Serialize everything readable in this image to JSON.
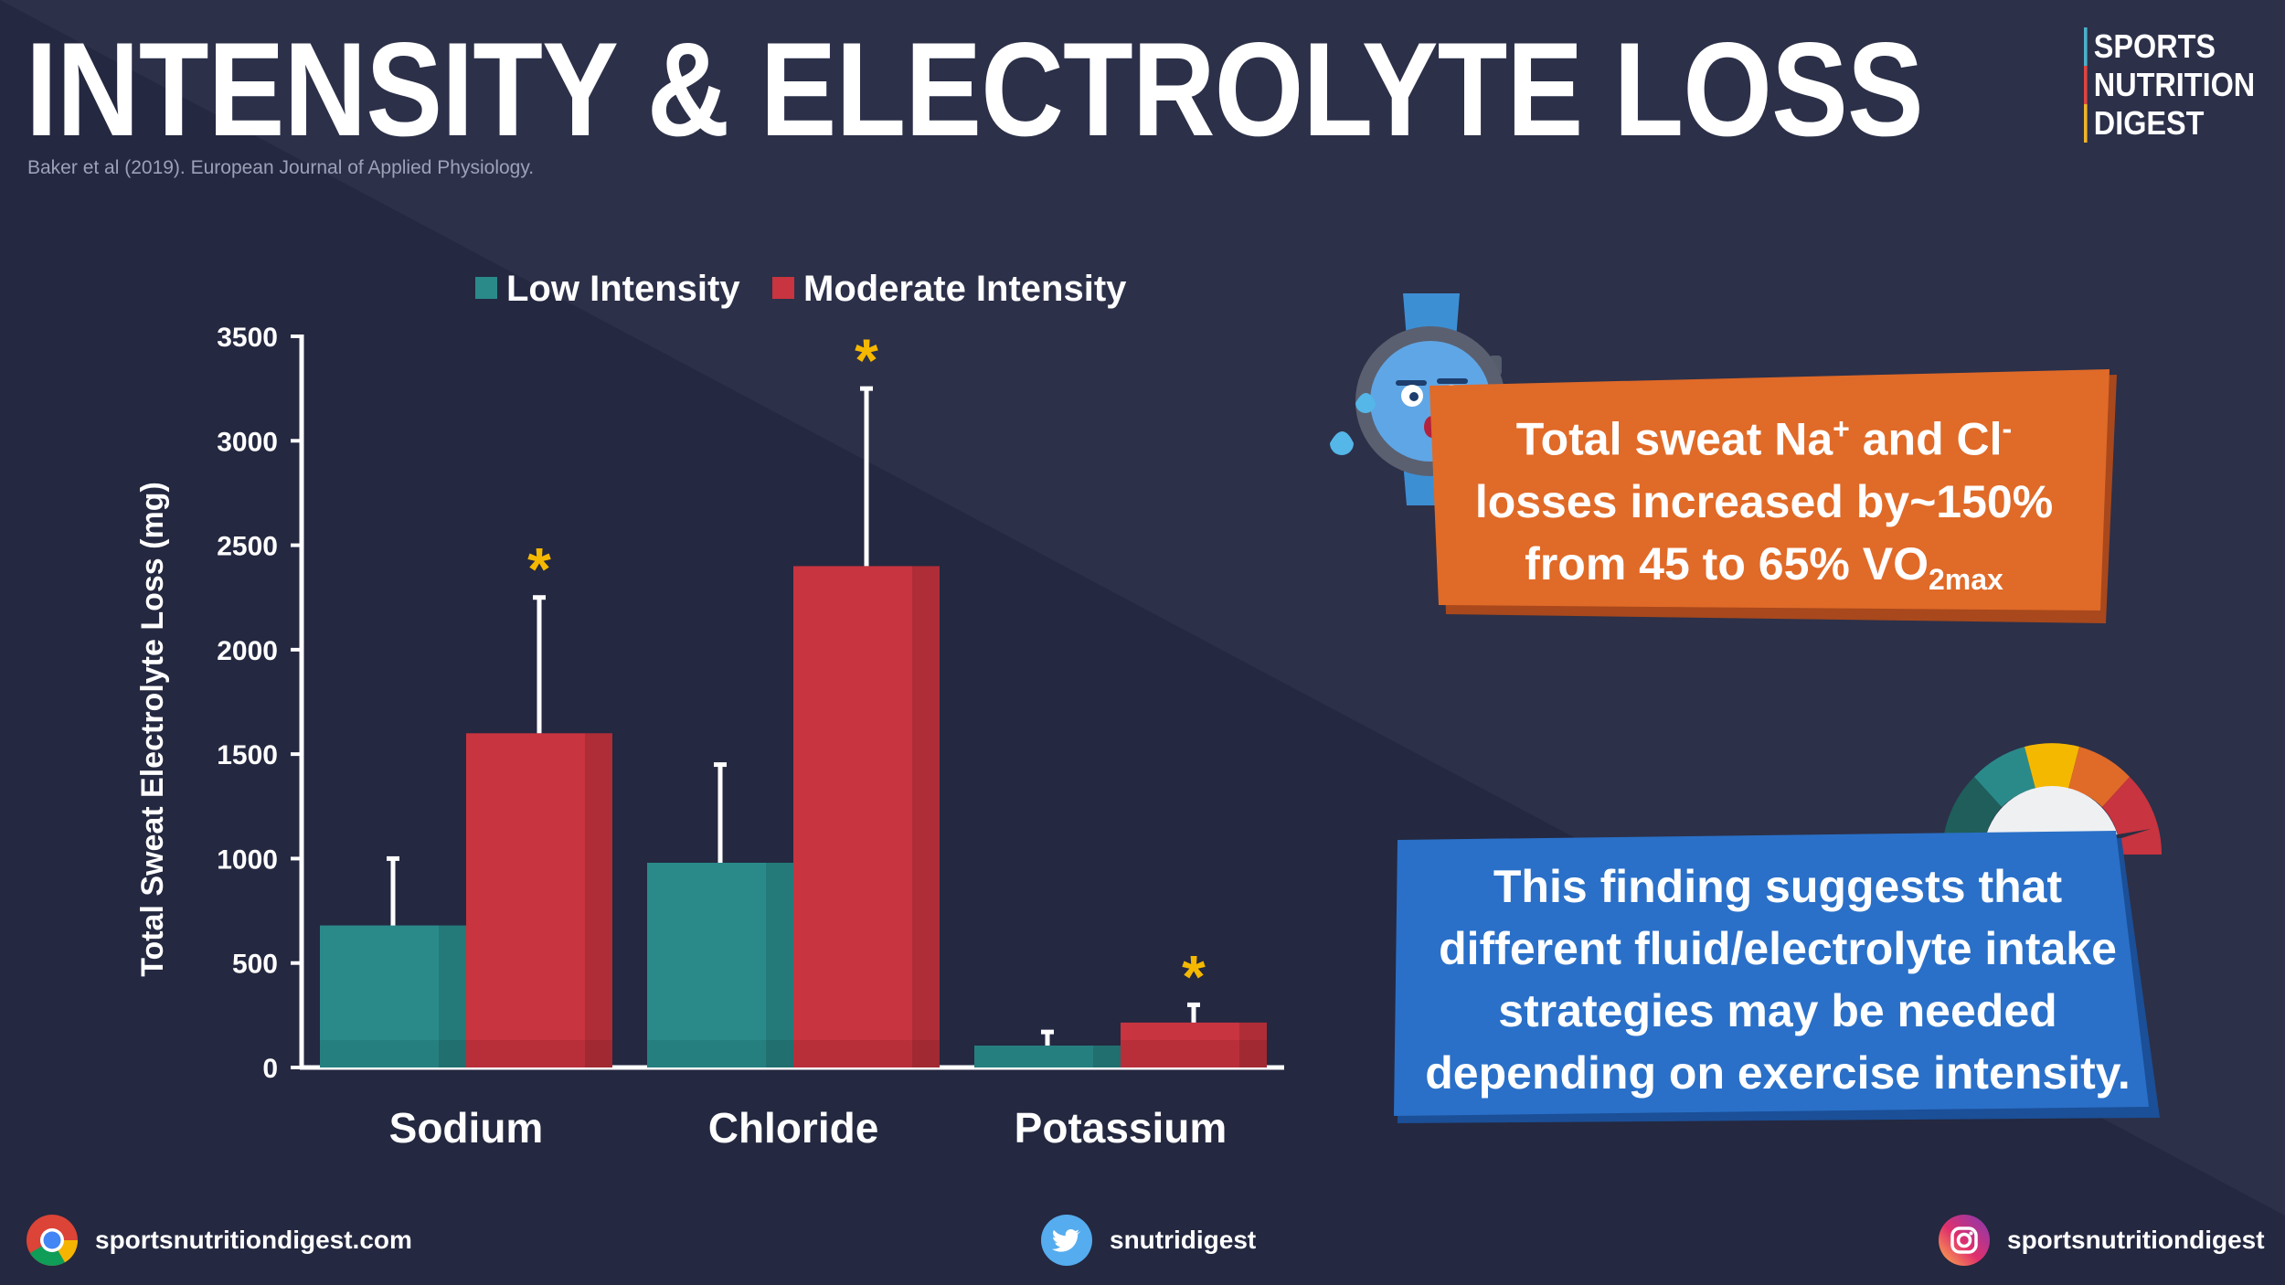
{
  "header": {
    "title": "INTENSITY & ELECTROLYTE LOSS",
    "citation": "Baker et al (2019). European Journal of Applied Physiology."
  },
  "brand": {
    "line1": "SPORTS",
    "line2": "NUTRITION",
    "line3": "DIGEST"
  },
  "colors": {
    "low": "#2a8a8a",
    "moderate": "#c8343f",
    "orange_box": "#e06a28",
    "blue_box": "#2a70c8",
    "star": "#f5b800",
    "background": "#242840"
  },
  "chart_data": {
    "type": "bar",
    "categories": [
      "Sodium",
      "Chloride",
      "Potassium"
    ],
    "series": [
      {
        "name": "Low Intensity",
        "values": [
          680,
          980,
          105
        ],
        "error_top": [
          1000,
          1450,
          170
        ],
        "significant": [
          false,
          false,
          false
        ]
      },
      {
        "name": "Moderate Intensity",
        "values": [
          1600,
          2400,
          215
        ],
        "error_top": [
          2250,
          3250,
          300
        ],
        "significant": [
          true,
          true,
          true
        ]
      }
    ],
    "ylabel": "Total Sweat Electrolyte Loss (mg)",
    "xlabel": "",
    "ylim": [
      0,
      3500
    ],
    "yticks": [
      "0",
      "500",
      "1000",
      "1500",
      "2000",
      "2500",
      "3000",
      "3500"
    ],
    "legend_position": "top",
    "significance_marker": "*",
    "grid": false
  },
  "callouts": {
    "orange": {
      "part1": "Total sweat Na",
      "sup1": "+",
      "part2": " and Cl",
      "sup2": "-",
      "part3": "losses increased by~150%",
      "part4": "from 45 to 65% VO",
      "sub1": "2max"
    },
    "blue": {
      "line1": "This finding suggests that",
      "line2": "different fluid/electrolyte intake",
      "line3": "strategies may be needed",
      "line4": "depending on exercise intensity."
    }
  },
  "footer": {
    "website": "sportsnutritiondigest.com",
    "twitter": "snutridigest",
    "instagram": "sportsnutritiondigest",
    "icons": [
      "chrome-icon",
      "twitter-icon",
      "instagram-icon"
    ]
  }
}
